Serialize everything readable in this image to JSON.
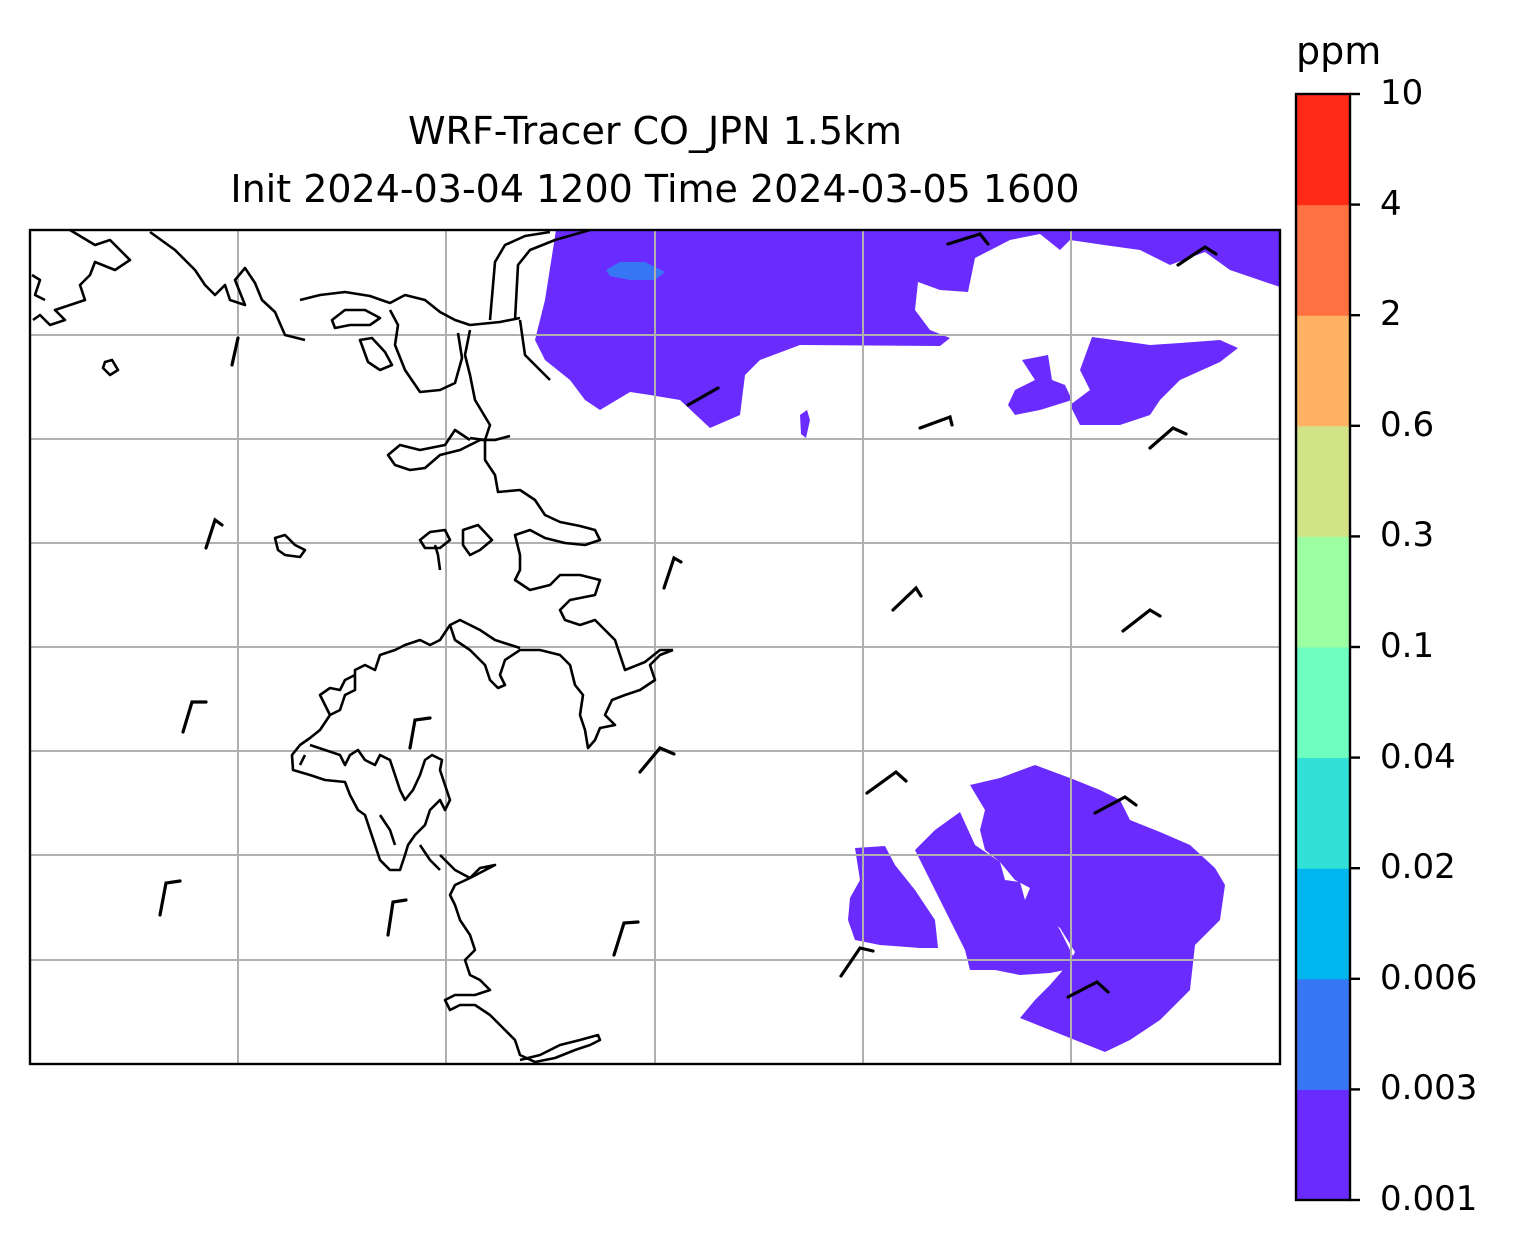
{
  "title": {
    "line1": "WRF-Tracer CO_JPN 1.5km",
    "line2": "Init 2024-03-04 1200 Time 2024-03-05 1600"
  },
  "colorbar": {
    "unit": "ppm",
    "levels": [
      "0.001",
      "0.003",
      "0.006",
      "0.02",
      "0.04",
      "0.1",
      "0.3",
      "0.6",
      "2",
      "4",
      "10"
    ],
    "colors": [
      "#6a2bff",
      "#3777f5",
      "#00b6ef",
      "#33e0d8",
      "#6effc0",
      "#9cffa2",
      "#d1e386",
      "#ffb263",
      "#ff7140",
      "#ff2915"
    ]
  },
  "map": {
    "filled_contour_color": "#6a2bff",
    "grid_color": "#b0b0b0",
    "coast_color": "#000000"
  }
}
